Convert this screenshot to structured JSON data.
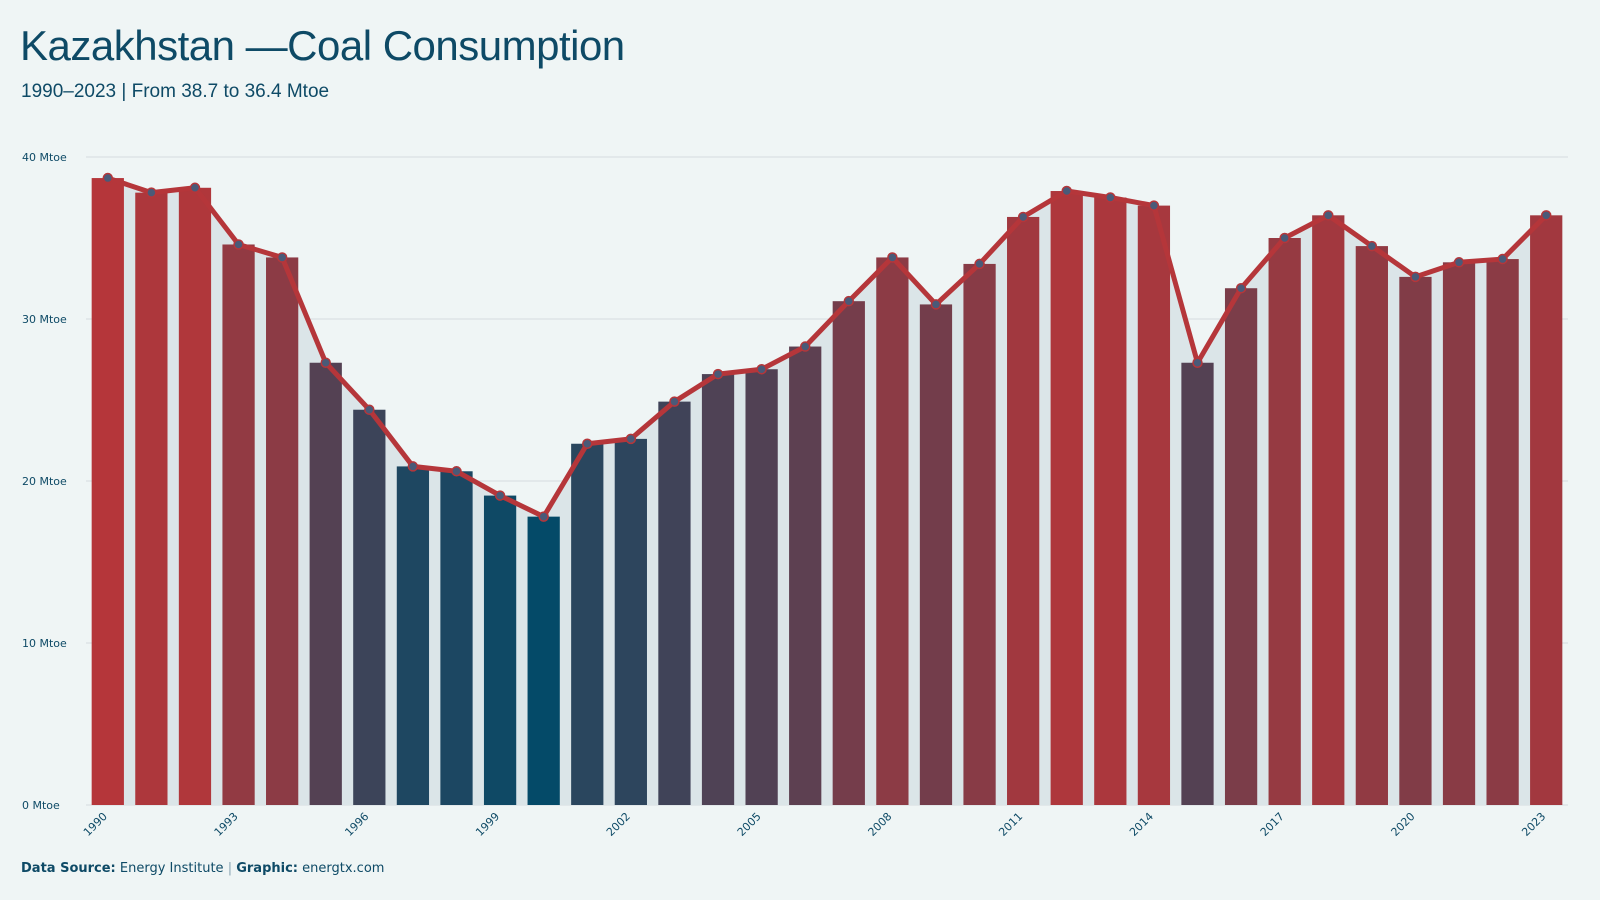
{
  "header": {
    "title": "Kazakhstan —Coal Consumption",
    "subtitle": "1990–2023 | From 38.7 to 36.4 Mtoe"
  },
  "footer": {
    "source_label": "Data Source:",
    "source_value": "Energy Institute",
    "separator": "|",
    "graphic_label": "Graphic:",
    "graphic_value": "energtx.com"
  },
  "colors": {
    "high": "#b5363a",
    "low": "#044a68",
    "line": "#b5363a",
    "point": "#4a5a78",
    "area": "#dbe5e8",
    "grid": "#d5dcdf",
    "text": "#0e4a66"
  },
  "chart_data": {
    "type": "bar",
    "unit": "Mtoe",
    "ylim": [
      0,
      40
    ],
    "yticks": [
      0,
      10,
      20,
      30,
      40
    ],
    "ytick_labels": [
      "0 Mtoe",
      "10 Mtoe",
      "20 Mtoe",
      "30 Mtoe",
      "40 Mtoe"
    ],
    "x": [
      1990,
      1991,
      1992,
      1993,
      1994,
      1995,
      1996,
      1997,
      1998,
      1999,
      2000,
      2001,
      2002,
      2003,
      2004,
      2005,
      2006,
      2007,
      2008,
      2009,
      2010,
      2011,
      2012,
      2013,
      2014,
      2015,
      2016,
      2017,
      2018,
      2019,
      2020,
      2021,
      2022,
      2023
    ],
    "values": [
      38.7,
      37.8,
      38.1,
      34.6,
      33.8,
      27.3,
      24.4,
      20.9,
      20.6,
      19.1,
      17.8,
      22.3,
      22.6,
      24.9,
      26.6,
      26.9,
      28.3,
      31.1,
      33.8,
      30.9,
      33.4,
      36.3,
      37.9,
      37.5,
      37.0,
      27.3,
      31.9,
      35.0,
      36.4,
      34.5,
      32.6,
      33.5,
      33.7,
      36.4
    ],
    "xtick_labels": [
      "1990",
      "1993",
      "1996",
      "1999",
      "2002",
      "2005",
      "2008",
      "2011",
      "2014",
      "2017",
      "2020",
      "2023"
    ],
    "grid": true,
    "legend": "none"
  }
}
